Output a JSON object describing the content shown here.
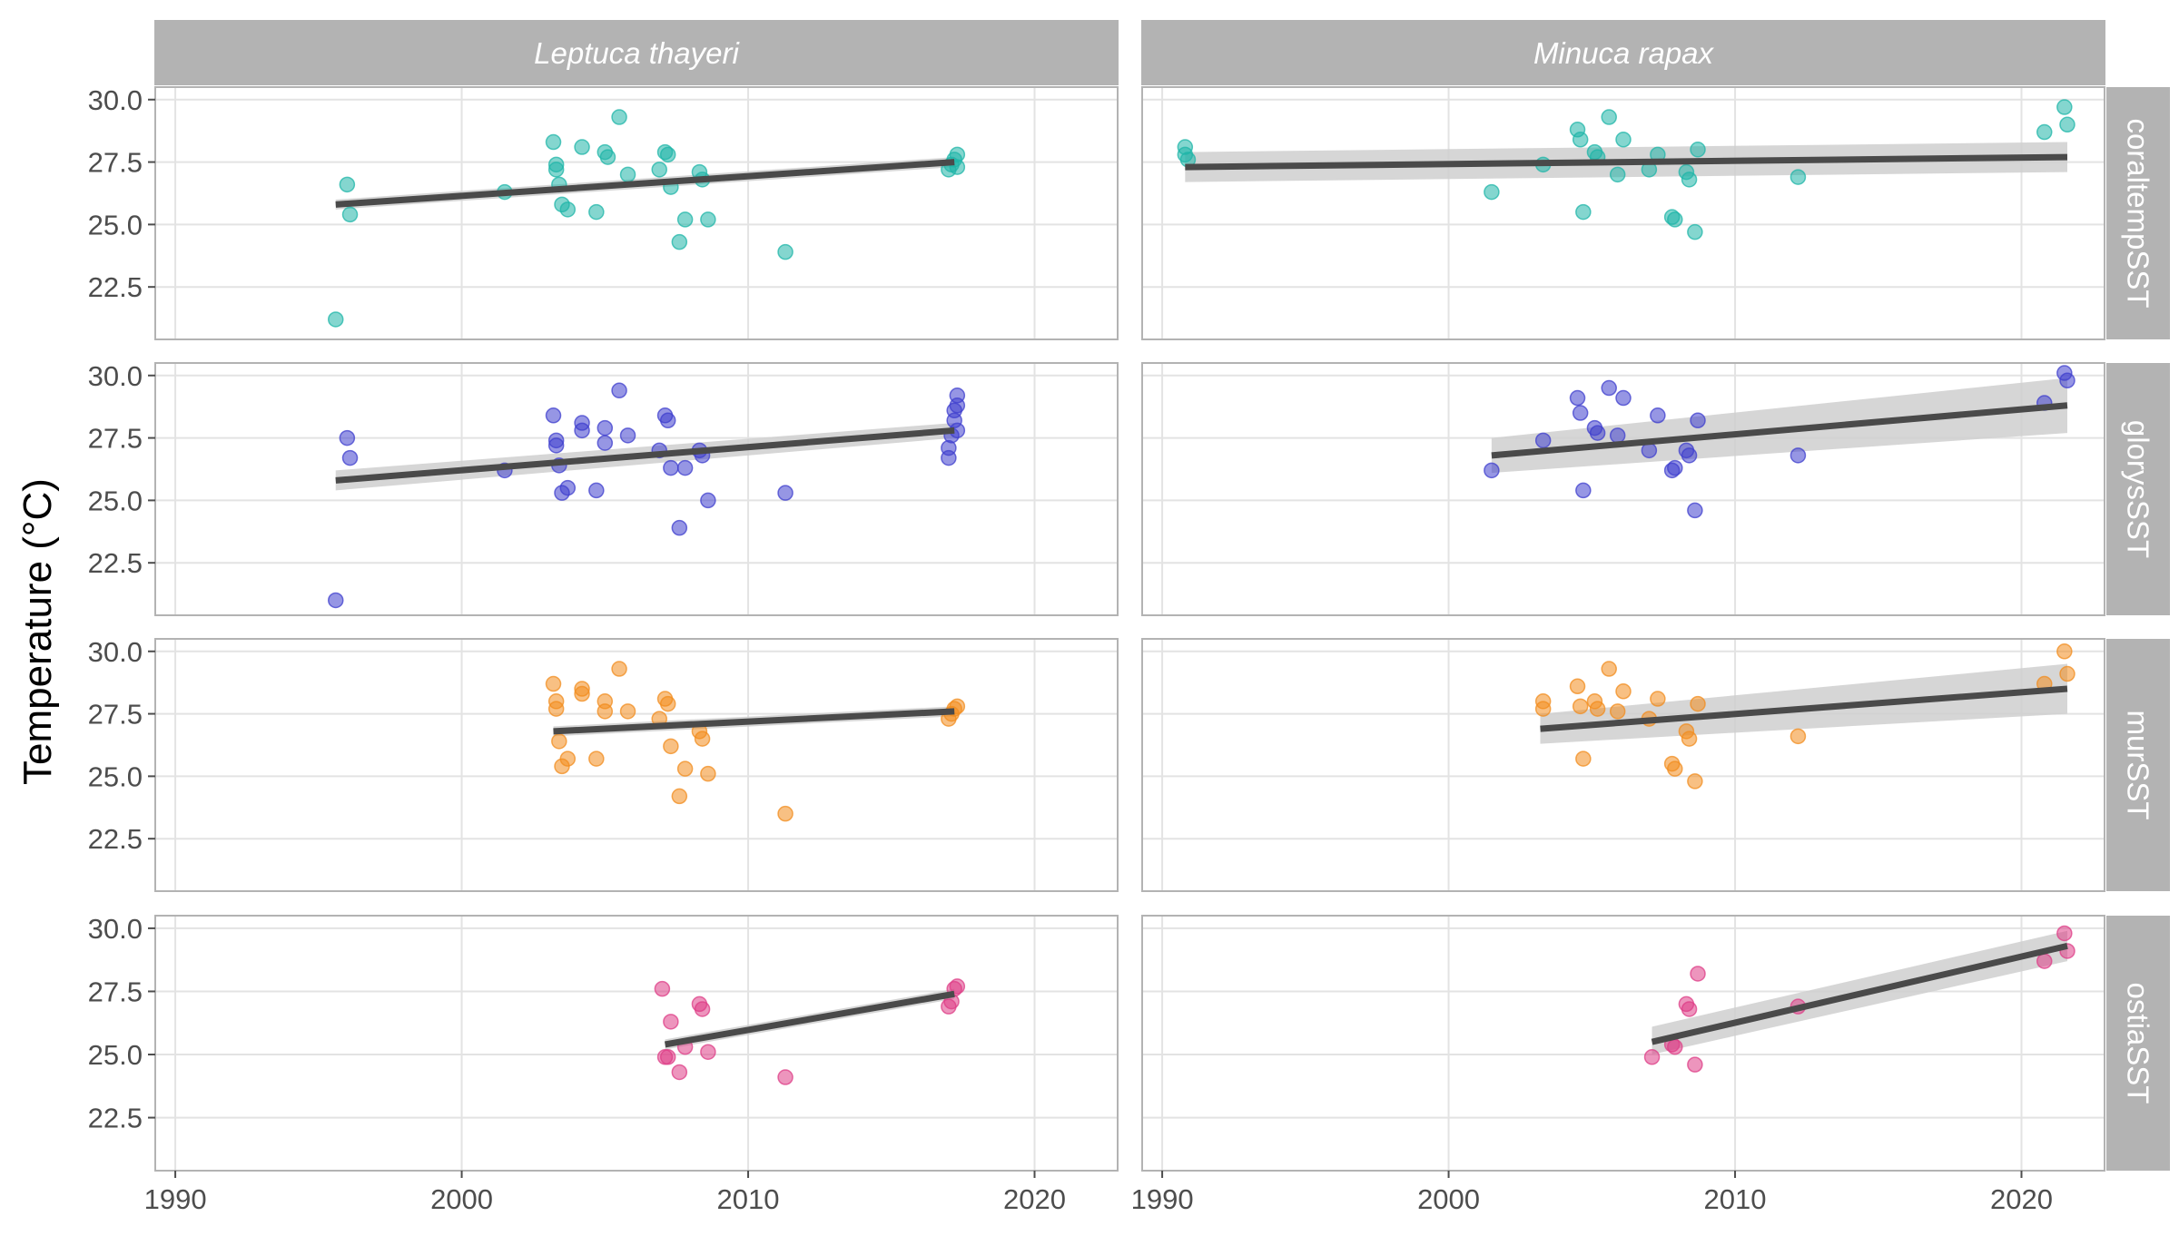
{
  "chart_data": {
    "type": "scatter",
    "ylabel": "Temperature (°C)",
    "xlabel": "",
    "xlim": [
      1989.3,
      2022.9
    ],
    "ylim": [
      20.4,
      30.5
    ],
    "x_ticks": [
      "1990",
      "2000",
      "2010",
      "2020"
    ],
    "x_tick_values": [
      1990,
      2000,
      2010,
      2020
    ],
    "y_ticks": [
      "22.5",
      "25.0",
      "27.5",
      "30.0"
    ],
    "y_tick_values": [
      22.5,
      25.0,
      27.5,
      30.0
    ],
    "grid": true,
    "columns": [
      "Leptuca thayeri",
      "Minuca rapax"
    ],
    "rows": [
      "coraltempSST",
      "glorysSST",
      "murSST",
      "ostiaSST"
    ],
    "colors": {
      "coraltempSST": "#1fb5a8",
      "glorysSST": "#3f3fce",
      "murSST": "#f28c1e",
      "ostiaSST": "#de3e87",
      "trend_line": "#4a4a4a",
      "ribbon": "#cfcfcf",
      "strip": "#b3b3b3"
    },
    "panels": [
      {
        "species": "Leptuca thayeri",
        "sst": "coraltempSST",
        "trend": {
          "x": [
            1995.6,
            2017.2
          ],
          "y": [
            25.8,
            27.5
          ],
          "ci": [
            [
              25.6,
              26.0
            ],
            [
              27.3,
              27.7
            ]
          ]
        },
        "points": [
          [
            1995.6,
            21.2
          ],
          [
            1996.0,
            26.6
          ],
          [
            1996.1,
            25.4
          ],
          [
            2001.5,
            26.3
          ],
          [
            2003.2,
            28.3
          ],
          [
            2003.3,
            27.4
          ],
          [
            2003.3,
            27.2
          ],
          [
            2003.4,
            26.6
          ],
          [
            2003.5,
            25.8
          ],
          [
            2003.7,
            25.6
          ],
          [
            2004.2,
            28.1
          ],
          [
            2004.7,
            25.5
          ],
          [
            2005.0,
            27.9
          ],
          [
            2005.1,
            27.7
          ],
          [
            2005.5,
            29.3
          ],
          [
            2005.8,
            27.0
          ],
          [
            2006.9,
            27.2
          ],
          [
            2007.1,
            27.9
          ],
          [
            2007.2,
            27.8
          ],
          [
            2007.3,
            26.5
          ],
          [
            2007.6,
            24.3
          ],
          [
            2007.8,
            25.2
          ],
          [
            2008.3,
            27.1
          ],
          [
            2008.4,
            26.8
          ],
          [
            2008.6,
            25.2
          ],
          [
            2011.3,
            23.9
          ],
          [
            2017.0,
            27.2
          ],
          [
            2017.1,
            27.4
          ],
          [
            2017.2,
            27.6
          ],
          [
            2017.3,
            27.8
          ],
          [
            2017.3,
            27.3
          ]
        ]
      },
      {
        "species": "Minuca rapax",
        "sst": "coraltempSST",
        "trend": {
          "x": [
            1990.8,
            2021.6
          ],
          "y": [
            27.3,
            27.7
          ],
          "ci": [
            [
              26.7,
              27.9
            ],
            [
              27.1,
              28.3
            ]
          ]
        },
        "points": [
          [
            1990.8,
            28.1
          ],
          [
            1990.8,
            27.8
          ],
          [
            1990.9,
            27.6
          ],
          [
            2001.5,
            26.3
          ],
          [
            2003.3,
            27.4
          ],
          [
            2004.5,
            28.8
          ],
          [
            2004.6,
            28.4
          ],
          [
            2004.7,
            25.5
          ],
          [
            2005.1,
            27.9
          ],
          [
            2005.2,
            27.7
          ],
          [
            2005.6,
            29.3
          ],
          [
            2005.9,
            27.0
          ],
          [
            2006.1,
            28.4
          ],
          [
            2007.0,
            27.2
          ],
          [
            2007.3,
            27.8
          ],
          [
            2007.8,
            25.3
          ],
          [
            2007.9,
            25.2
          ],
          [
            2008.3,
            27.1
          ],
          [
            2008.4,
            26.8
          ],
          [
            2008.6,
            24.7
          ],
          [
            2008.7,
            28.0
          ],
          [
            2012.2,
            26.9
          ],
          [
            2020.8,
            28.7
          ],
          [
            2021.5,
            29.7
          ],
          [
            2021.6,
            29.0
          ]
        ]
      },
      {
        "species": "Leptuca thayeri",
        "sst": "glorysSST",
        "trend": {
          "x": [
            1995.6,
            2017.2
          ],
          "y": [
            25.8,
            27.8
          ],
          "ci": [
            [
              25.4,
              26.2
            ],
            [
              27.5,
              28.1
            ]
          ]
        },
        "points": [
          [
            1995.6,
            21.0
          ],
          [
            1996.0,
            27.5
          ],
          [
            1996.1,
            26.7
          ],
          [
            2001.5,
            26.2
          ],
          [
            2003.2,
            28.4
          ],
          [
            2003.3,
            27.4
          ],
          [
            2003.3,
            27.2
          ],
          [
            2003.4,
            26.4
          ],
          [
            2003.5,
            25.3
          ],
          [
            2003.7,
            25.5
          ],
          [
            2004.2,
            28.1
          ],
          [
            2004.2,
            27.8
          ],
          [
            2004.7,
            25.4
          ],
          [
            2005.0,
            27.9
          ],
          [
            2005.0,
            27.3
          ],
          [
            2005.5,
            29.4
          ],
          [
            2005.8,
            27.6
          ],
          [
            2006.9,
            27.0
          ],
          [
            2007.1,
            28.4
          ],
          [
            2007.2,
            28.2
          ],
          [
            2007.3,
            26.3
          ],
          [
            2007.6,
            23.9
          ],
          [
            2007.8,
            26.3
          ],
          [
            2008.3,
            27.0
          ],
          [
            2008.4,
            26.8
          ],
          [
            2008.6,
            25.0
          ],
          [
            2011.3,
            25.3
          ],
          [
            2017.0,
            26.7
          ],
          [
            2017.0,
            27.1
          ],
          [
            2017.1,
            27.6
          ],
          [
            2017.2,
            28.2
          ],
          [
            2017.2,
            28.6
          ],
          [
            2017.3,
            29.2
          ],
          [
            2017.3,
            28.8
          ],
          [
            2017.3,
            27.8
          ]
        ]
      },
      {
        "species": "Minuca rapax",
        "sst": "glorysSST",
        "trend": {
          "x": [
            2001.5,
            2021.6
          ],
          "y": [
            26.8,
            28.8
          ],
          "ci": [
            [
              26.1,
              27.5
            ],
            [
              27.7,
              29.9
            ]
          ]
        },
        "points": [
          [
            2001.5,
            26.2
          ],
          [
            2003.3,
            27.4
          ],
          [
            2004.5,
            29.1
          ],
          [
            2004.6,
            28.5
          ],
          [
            2004.7,
            25.4
          ],
          [
            2005.1,
            27.9
          ],
          [
            2005.2,
            27.7
          ],
          [
            2005.6,
            29.5
          ],
          [
            2005.9,
            27.6
          ],
          [
            2006.1,
            29.1
          ],
          [
            2007.0,
            27.0
          ],
          [
            2007.3,
            28.4
          ],
          [
            2007.8,
            26.2
          ],
          [
            2007.9,
            26.3
          ],
          [
            2008.3,
            27.0
          ],
          [
            2008.4,
            26.8
          ],
          [
            2008.6,
            24.6
          ],
          [
            2008.7,
            28.2
          ],
          [
            2012.2,
            26.8
          ],
          [
            2020.8,
            28.9
          ],
          [
            2021.5,
            30.1
          ],
          [
            2021.6,
            29.8
          ]
        ]
      },
      {
        "species": "Leptuca thayeri",
        "sst": "murSST",
        "trend": {
          "x": [
            2003.2,
            2017.2
          ],
          "y": [
            26.8,
            27.6
          ],
          "ci": [
            [
              26.6,
              27.0
            ],
            [
              27.4,
              27.8
            ]
          ]
        },
        "points": [
          [
            2003.2,
            28.7
          ],
          [
            2003.3,
            28.0
          ],
          [
            2003.3,
            27.7
          ],
          [
            2003.4,
            26.4
          ],
          [
            2003.5,
            25.4
          ],
          [
            2003.7,
            25.7
          ],
          [
            2004.2,
            28.5
          ],
          [
            2004.2,
            28.3
          ],
          [
            2004.7,
            25.7
          ],
          [
            2005.0,
            28.0
          ],
          [
            2005.0,
            27.6
          ],
          [
            2005.5,
            29.3
          ],
          [
            2005.8,
            27.6
          ],
          [
            2006.9,
            27.3
          ],
          [
            2007.1,
            28.1
          ],
          [
            2007.2,
            27.9
          ],
          [
            2007.3,
            26.2
          ],
          [
            2007.6,
            24.2
          ],
          [
            2007.8,
            25.3
          ],
          [
            2008.3,
            26.8
          ],
          [
            2008.4,
            26.5
          ],
          [
            2008.6,
            25.1
          ],
          [
            2011.3,
            23.5
          ],
          [
            2017.0,
            27.3
          ],
          [
            2017.1,
            27.5
          ],
          [
            2017.2,
            27.7
          ],
          [
            2017.3,
            27.8
          ]
        ]
      },
      {
        "species": "Minuca rapax",
        "sst": "murSST",
        "trend": {
          "x": [
            2003.2,
            2021.6
          ],
          "y": [
            26.9,
            28.5
          ],
          "ci": [
            [
              26.3,
              27.5
            ],
            [
              27.5,
              29.5
            ]
          ]
        },
        "points": [
          [
            2003.3,
            28.0
          ],
          [
            2003.3,
            27.7
          ],
          [
            2004.5,
            28.6
          ],
          [
            2004.6,
            27.8
          ],
          [
            2004.7,
            25.7
          ],
          [
            2005.1,
            28.0
          ],
          [
            2005.2,
            27.7
          ],
          [
            2005.6,
            29.3
          ],
          [
            2005.9,
            27.6
          ],
          [
            2006.1,
            28.4
          ],
          [
            2007.0,
            27.3
          ],
          [
            2007.3,
            28.1
          ],
          [
            2007.8,
            25.5
          ],
          [
            2007.9,
            25.3
          ],
          [
            2008.3,
            26.8
          ],
          [
            2008.4,
            26.5
          ],
          [
            2008.6,
            24.8
          ],
          [
            2008.7,
            27.9
          ],
          [
            2012.2,
            26.6
          ],
          [
            2020.8,
            28.7
          ],
          [
            2021.5,
            30.0
          ],
          [
            2021.6,
            29.1
          ]
        ]
      },
      {
        "species": "Leptuca thayeri",
        "sst": "ostiaSST",
        "trend": {
          "x": [
            2007.1,
            2017.2
          ],
          "y": [
            25.4,
            27.4
          ],
          "ci": [
            [
              25.2,
              25.6
            ],
            [
              27.2,
              27.6
            ]
          ]
        },
        "points": [
          [
            2007.0,
            27.6
          ],
          [
            2007.1,
            24.9
          ],
          [
            2007.2,
            24.9
          ],
          [
            2007.3,
            26.3
          ],
          [
            2007.6,
            24.3
          ],
          [
            2007.8,
            25.3
          ],
          [
            2008.3,
            27.0
          ],
          [
            2008.4,
            26.8
          ],
          [
            2008.6,
            25.1
          ],
          [
            2011.3,
            24.1
          ],
          [
            2017.0,
            26.9
          ],
          [
            2017.1,
            27.1
          ],
          [
            2017.2,
            27.6
          ],
          [
            2017.3,
            27.7
          ]
        ]
      },
      {
        "species": "Minuca rapax",
        "sst": "ostiaSST",
        "trend": {
          "x": [
            2007.1,
            2021.6
          ],
          "y": [
            25.5,
            29.3
          ],
          "ci": [
            [
              25.0,
              26.1
            ],
            [
              28.7,
              29.9
            ]
          ]
        },
        "points": [
          [
            2007.1,
            24.9
          ],
          [
            2007.8,
            25.4
          ],
          [
            2007.9,
            25.3
          ],
          [
            2008.3,
            27.0
          ],
          [
            2008.4,
            26.8
          ],
          [
            2008.6,
            24.6
          ],
          [
            2008.7,
            28.2
          ],
          [
            2012.2,
            26.9
          ],
          [
            2020.8,
            28.7
          ],
          [
            2021.5,
            29.8
          ],
          [
            2021.6,
            29.1
          ]
        ]
      }
    ]
  }
}
